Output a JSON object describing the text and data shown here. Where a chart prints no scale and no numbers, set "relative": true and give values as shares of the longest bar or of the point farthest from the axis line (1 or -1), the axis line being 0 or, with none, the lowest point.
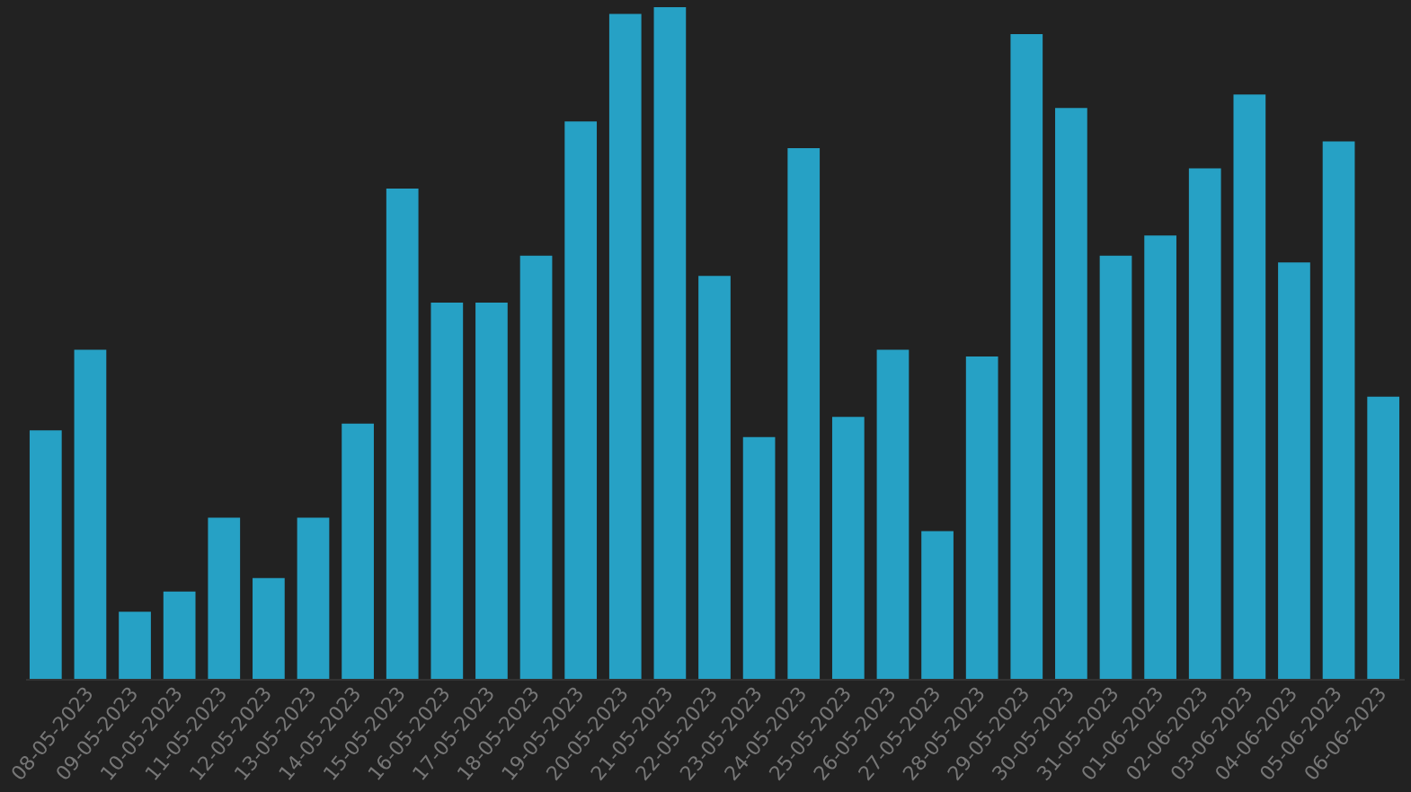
{
  "chart_data": {
    "type": "bar",
    "relative": true,
    "color": "#26a1c5",
    "categories": [
      null,
      "08-05-2023",
      "09-05-2023",
      "10-05-2023",
      "11-05-2023",
      "12-05-2023",
      "13-05-2023",
      "14-05-2023",
      "15-05-2023",
      "16-05-2023",
      "17-05-2023",
      "18-05-2023",
      "19-05-2023",
      "20-05-2023",
      "21-05-2023",
      "22-05-2023",
      "23-05-2023",
      "24-05-2023",
      "25-05-2023",
      "26-05-2023",
      "27-05-2023",
      "28-05-2023",
      "29-05-2023",
      "30-05-2023",
      "31-05-2023",
      "01-06-2023",
      "02-06-2023",
      "03-06-2023",
      "04-06-2023",
      "05-06-2023",
      "06-06-2023"
    ],
    "values": [
      0.37,
      0.49,
      0.1,
      0.13,
      0.24,
      0.15,
      0.24,
      0.38,
      0.73,
      0.56,
      0.56,
      0.63,
      0.83,
      0.99,
      1,
      0.6,
      0.36,
      0.79,
      0.39,
      0.49,
      0.22,
      0.48,
      0.96,
      0.85,
      0.63,
      0.66,
      0.76,
      0.87,
      0.62,
      0.8,
      0.42
    ]
  }
}
